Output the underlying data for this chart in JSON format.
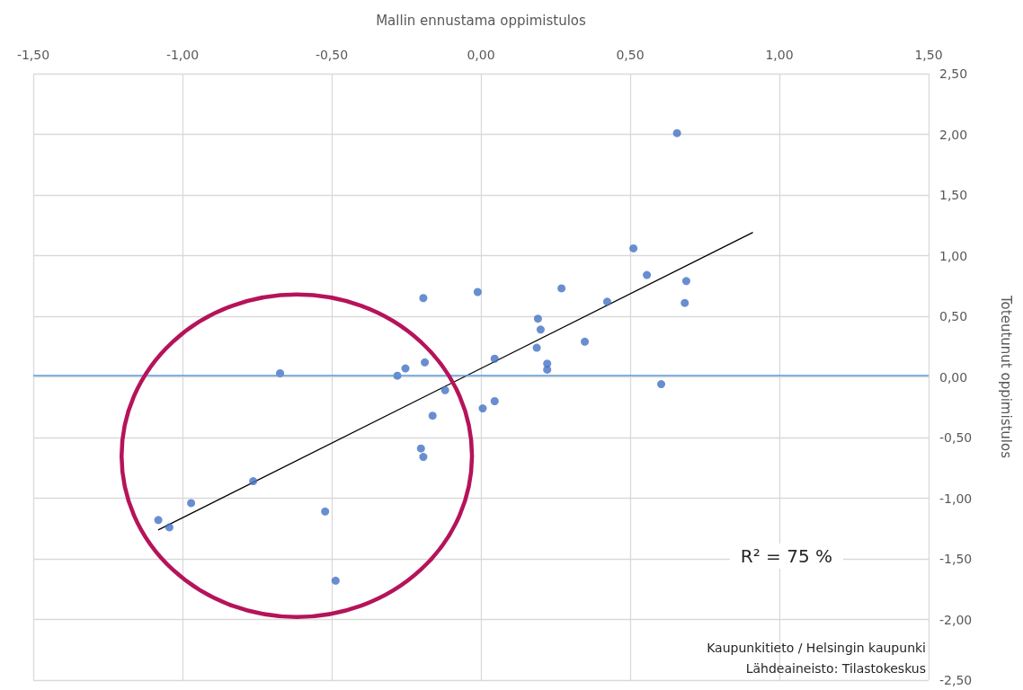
{
  "chart_data": {
    "type": "scatter",
    "xlabel": "Mallin ennustama oppimistulos",
    "ylabel": "Toteutunut oppimistulos",
    "xlim": [
      -1.5,
      1.5
    ],
    "xticks": [
      {
        "value": -1.5,
        "label": "-1,50"
      },
      {
        "value": -1,
        "label": "-1,00"
      },
      {
        "value": -0.5,
        "label": "-0,50"
      },
      {
        "value": 0,
        "label": "0,00"
      },
      {
        "value": 0.5,
        "label": "0,50"
      },
      {
        "value": 1,
        "label": "1,00"
      },
      {
        "value": 1.5,
        "label": "1,50"
      }
    ],
    "ylim": [
      -2.5,
      2.5
    ],
    "yticks": [
      {
        "value": -2.5,
        "label": "-2,50"
      },
      {
        "value": -2,
        "label": "-2,00"
      },
      {
        "value": -1.5,
        "label": "-1,50"
      },
      {
        "value": -1,
        "label": "-1,00"
      },
      {
        "value": -0.5,
        "label": "-0,50"
      },
      {
        "value": 0,
        "label": "0,00"
      },
      {
        "value": 0.5,
        "label": "0,50"
      },
      {
        "value": 1,
        "label": "1,00"
      },
      {
        "value": 1.5,
        "label": "1,50"
      },
      {
        "value": 2,
        "label": "2,00"
      },
      {
        "value": 2.5,
        "label": "2,50"
      }
    ],
    "grid": true,
    "marker": "circle",
    "series": [
      {
        "color": "#4472c4",
        "x": [
          -0.673,
          -0.763,
          -0.971,
          -1.081,
          -1.044,
          -0.522,
          -0.487,
          -0.193,
          -0.011,
          0.27,
          0.423,
          0.191,
          0.2,
          0.348,
          0.187,
          0.046,
          0.222,
          0.222,
          -0.188,
          -0.253,
          -0.28,
          -0.12,
          0.046,
          0.006,
          -0.162,
          -0.201,
          -0.193,
          0.657,
          0.511,
          0.556,
          0.688,
          0.683,
          0.604
        ],
        "values": [
          0.03,
          -0.86,
          -1.04,
          -1.18,
          -1.24,
          -1.11,
          -1.68,
          0.65,
          0.7,
          0.73,
          0.62,
          0.48,
          0.39,
          0.29,
          0.24,
          0.15,
          0.11,
          0.06,
          0.12,
          0.07,
          0.01,
          -0.11,
          -0.2,
          -0.26,
          -0.32,
          -0.59,
          -0.66,
          2.01,
          1.06,
          0.84,
          0.79,
          0.61,
          -0.06
        ]
      },
      {
        "type": "line",
        "color": "#000000",
        "marker": "none",
        "x": [
          -1.08,
          0.91
        ],
        "values": [
          -1.26,
          1.19
        ]
      }
    ],
    "ref_lines": [
      {
        "axis": "y",
        "value": 0.01,
        "color": "#5b9bd5"
      }
    ],
    "annotations": [
      "R² = 75 %",
      "Kaupunkitieto / Helsingin kaupunki",
      "Lähdeaineisto: Tilastokeskus"
    ]
  }
}
